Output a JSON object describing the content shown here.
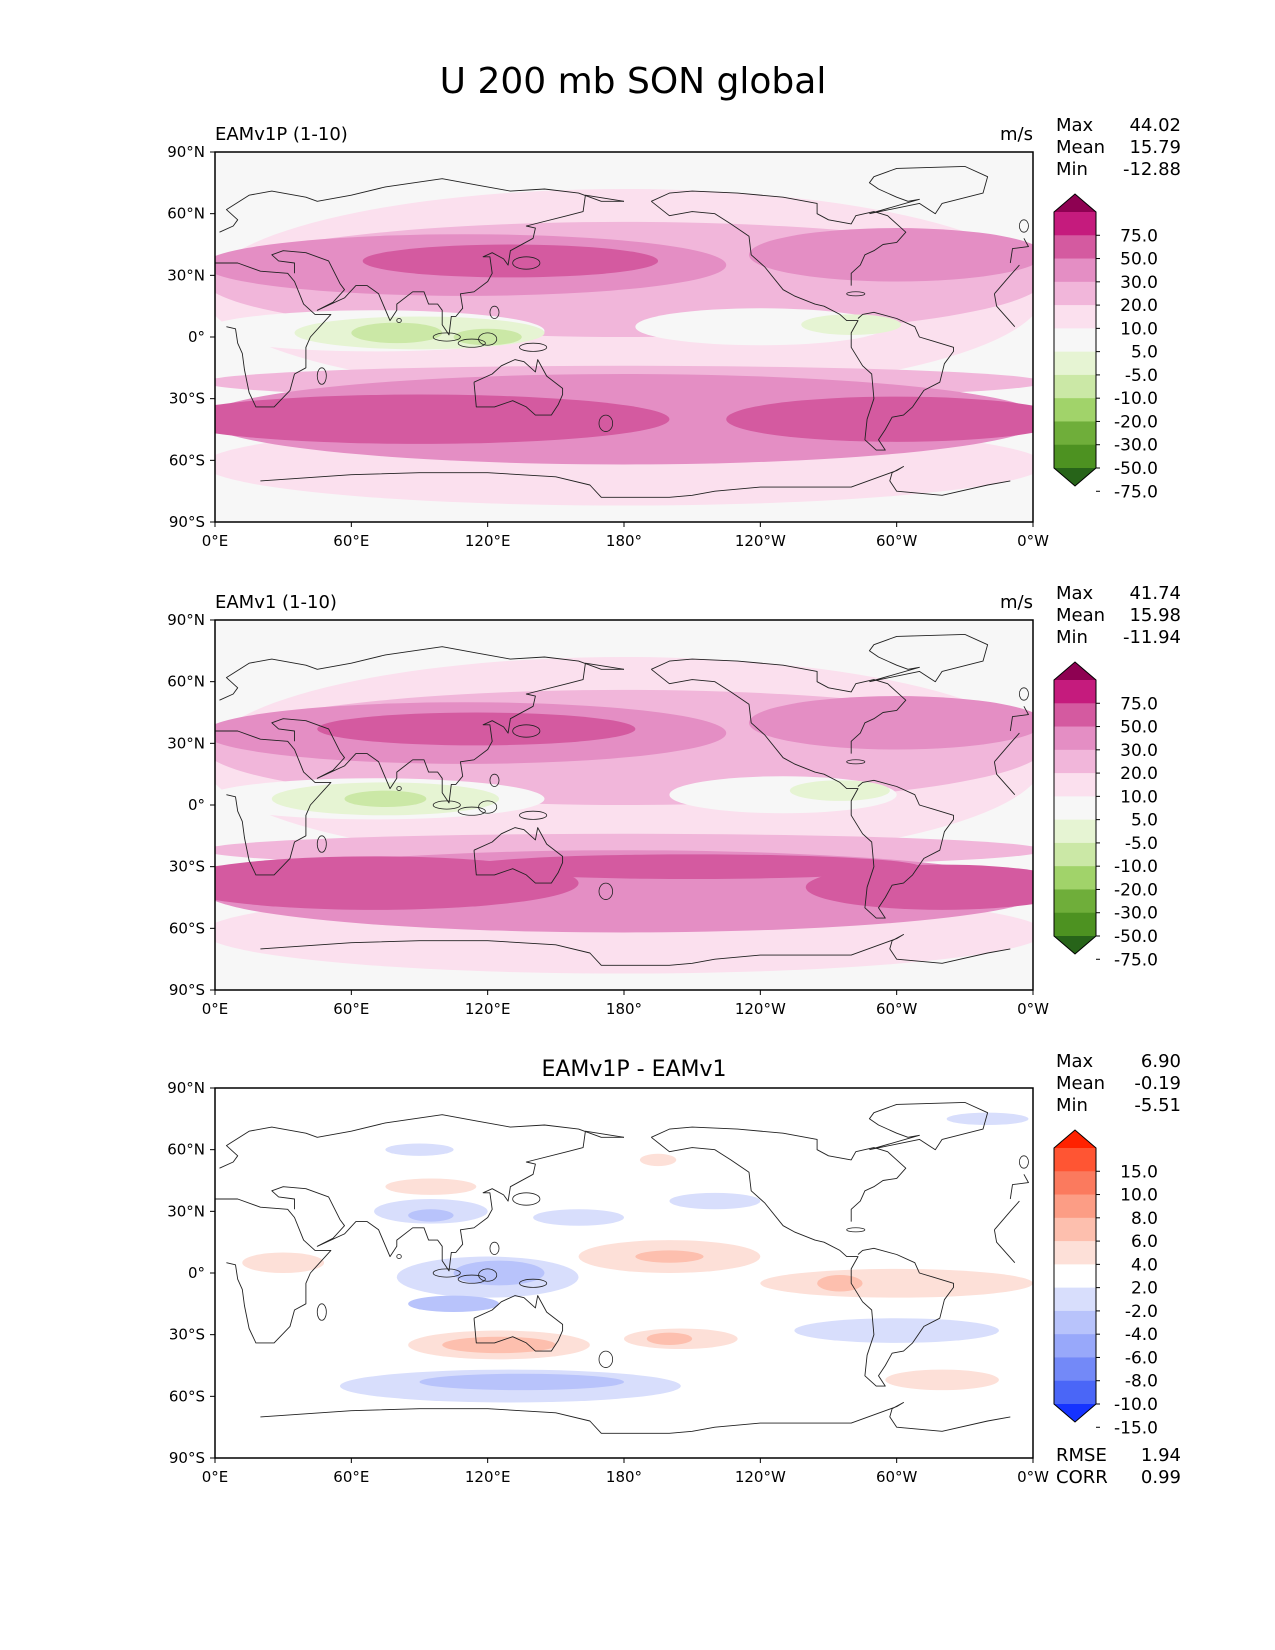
{
  "title": "U 200 mb SON global",
  "x_ticks": [
    "0°E",
    "60°E",
    "120°E",
    "180°",
    "120°W",
    "60°W",
    "0°W"
  ],
  "y_ticks": [
    "90°N",
    "60°N",
    "30°N",
    "0°",
    "30°S",
    "60°S",
    "90°S"
  ],
  "panels": [
    {
      "subtitle_left": "EAMv1P (1-10)",
      "subtitle_center": "",
      "units": "m/s",
      "stats": [
        {
          "label": "Max",
          "value": "44.02"
        },
        {
          "label": "Mean",
          "value": "15.79"
        },
        {
          "label": "Min",
          "value": "-12.88"
        }
      ],
      "extra_stats": [],
      "colorbar": {
        "labels": [
          "75.0",
          "50.0",
          "30.0",
          "20.0",
          "10.0",
          "5.0",
          "-5.0",
          "-10.0",
          "-20.0",
          "-30.0",
          "-50.0",
          "-75.0"
        ],
        "colors": [
          "#8e0152",
          "#c51b7d",
          "#d45aa0",
          "#e48ec4",
          "#f1b6da",
          "#fbe0ee",
          "#f7f7f7",
          "#e6f4d3",
          "#cbe8a6",
          "#a1d36a",
          "#6fae3a",
          "#4d9221",
          "#276419"
        ]
      }
    },
    {
      "subtitle_left": "EAMv1 (1-10)",
      "subtitle_center": "",
      "units": "m/s",
      "stats": [
        {
          "label": "Max",
          "value": "41.74"
        },
        {
          "label": "Mean",
          "value": "15.98"
        },
        {
          "label": "Min",
          "value": "-11.94"
        }
      ],
      "extra_stats": [],
      "colorbar": {
        "labels": [
          "75.0",
          "50.0",
          "30.0",
          "20.0",
          "10.0",
          "5.0",
          "-5.0",
          "-10.0",
          "-20.0",
          "-30.0",
          "-50.0",
          "-75.0"
        ],
        "colors": [
          "#8e0152",
          "#c51b7d",
          "#d45aa0",
          "#e48ec4",
          "#f1b6da",
          "#fbe0ee",
          "#f7f7f7",
          "#e6f4d3",
          "#cbe8a6",
          "#a1d36a",
          "#6fae3a",
          "#4d9221",
          "#276419"
        ]
      }
    },
    {
      "subtitle_left": "",
      "subtitle_center": "EAMv1P - EAMv1",
      "units": "",
      "stats": [
        {
          "label": "Max",
          "value": "6.90"
        },
        {
          "label": "Mean",
          "value": "-0.19"
        },
        {
          "label": "Min",
          "value": "-5.51"
        }
      ],
      "extra_stats": [
        {
          "label": "RMSE",
          "value": "1.94"
        },
        {
          "label": "CORR",
          "value": "0.99"
        }
      ],
      "colorbar": {
        "labels": [
          "15.0",
          "10.0",
          "8.0",
          "6.0",
          "4.0",
          "2.0",
          "-2.0",
          "-4.0",
          "-6.0",
          "-8.0",
          "-10.0",
          "-15.0"
        ],
        "colors": [
          "#ff2200",
          "#ff5533",
          "#fb7a5e",
          "#fc9d85",
          "#fdbfae",
          "#fde0d8",
          "#ffffff",
          "#d8defc",
          "#b8c3fb",
          "#98a8fa",
          "#7389f8",
          "#4a66f7",
          "#1533ff"
        ]
      }
    }
  ],
  "map_layers": [
    {
      "fill": "#f7f7f7",
      "blobs": [
        {
          "fill": "#fbe0ee",
          "lon": 180,
          "lat": 22,
          "rx": 185,
          "ry": 50
        },
        {
          "fill": "#fbe0ee",
          "lon": 180,
          "lat": -62,
          "rx": 185,
          "ry": 20
        },
        {
          "fill": "#f1b6da",
          "lon": 180,
          "lat": 28,
          "rx": 185,
          "ry": 28
        },
        {
          "fill": "#f1b6da",
          "lon": 180,
          "lat": -22,
          "rx": 185,
          "ry": 8
        },
        {
          "fill": "#e48ec4",
          "lon": 110,
          "lat": 35,
          "rx": 115,
          "ry": 15
        },
        {
          "fill": "#e48ec4",
          "lon": 300,
          "lat": 40,
          "rx": 65,
          "ry": 13
        },
        {
          "fill": "#e48ec4",
          "lon": 180,
          "lat": -40,
          "rx": 185,
          "ry": 22
        },
        {
          "fill": "#d45aa0",
          "lon": 130,
          "lat": 37,
          "rx": 65,
          "ry": 8
        },
        {
          "fill": "#d45aa0",
          "lon": 90,
          "lat": -40,
          "rx": 110,
          "ry": 12
        },
        {
          "fill": "#d45aa0",
          "lon": 300,
          "lat": -40,
          "rx": 75,
          "ry": 11
        },
        {
          "fill": "#f7f7f7",
          "lon": 240,
          "lat": 5,
          "rx": 55,
          "ry": 9
        },
        {
          "fill": "#f7f7f7",
          "lon": 70,
          "lat": 3,
          "rx": 75,
          "ry": 10
        },
        {
          "fill": "#e6f4d3",
          "lon": 90,
          "lat": 2,
          "rx": 55,
          "ry": 8
        },
        {
          "fill": "#e6f4d3",
          "lon": 280,
          "lat": 6,
          "rx": 22,
          "ry": 5
        },
        {
          "fill": "#cbe8a6",
          "lon": 80,
          "lat": 2,
          "rx": 20,
          "ry": 5
        },
        {
          "fill": "#cbe8a6",
          "lon": 120,
          "lat": 0,
          "rx": 15,
          "ry": 4
        }
      ]
    },
    {
      "fill": "#f7f7f7",
      "blobs": [
        {
          "fill": "#fbe0ee",
          "lon": 180,
          "lat": 22,
          "rx": 185,
          "ry": 50
        },
        {
          "fill": "#fbe0ee",
          "lon": 180,
          "lat": -62,
          "rx": 185,
          "ry": 20
        },
        {
          "fill": "#f1b6da",
          "lon": 180,
          "lat": 28,
          "rx": 185,
          "ry": 28
        },
        {
          "fill": "#f1b6da",
          "lon": 180,
          "lat": -22,
          "rx": 185,
          "ry": 8
        },
        {
          "fill": "#e48ec4",
          "lon": 110,
          "lat": 35,
          "rx": 115,
          "ry": 15
        },
        {
          "fill": "#e48ec4",
          "lon": 300,
          "lat": 40,
          "rx": 65,
          "ry": 13
        },
        {
          "fill": "#e48ec4",
          "lon": 180,
          "lat": -42,
          "rx": 185,
          "ry": 20
        },
        {
          "fill": "#d45aa0",
          "lon": 115,
          "lat": 37,
          "rx": 70,
          "ry": 8
        },
        {
          "fill": "#d45aa0",
          "lon": 70,
          "lat": -38,
          "rx": 90,
          "ry": 13
        },
        {
          "fill": "#d45aa0",
          "lon": 210,
          "lat": -30,
          "rx": 100,
          "ry": 6
        },
        {
          "fill": "#d45aa0",
          "lon": 320,
          "lat": -40,
          "rx": 60,
          "ry": 11
        },
        {
          "fill": "#f7f7f7",
          "lon": 250,
          "lat": 5,
          "rx": 50,
          "ry": 9
        },
        {
          "fill": "#f7f7f7",
          "lon": 70,
          "lat": 3,
          "rx": 75,
          "ry": 10
        },
        {
          "fill": "#e6f4d3",
          "lon": 75,
          "lat": 3,
          "rx": 50,
          "ry": 8
        },
        {
          "fill": "#e6f4d3",
          "lon": 275,
          "lat": 7,
          "rx": 22,
          "ry": 5
        },
        {
          "fill": "#cbe8a6",
          "lon": 75,
          "lat": 3,
          "rx": 18,
          "ry": 4
        }
      ]
    },
    {
      "fill": "#ffffff",
      "blobs": [
        {
          "fill": "#d8defc",
          "lon": 95,
          "lat": 30,
          "rx": 25,
          "ry": 6
        },
        {
          "fill": "#b8c3fb",
          "lon": 95,
          "lat": 28,
          "rx": 10,
          "ry": 3
        },
        {
          "fill": "#d8defc",
          "lon": 120,
          "lat": -2,
          "rx": 40,
          "ry": 10
        },
        {
          "fill": "#b8c3fb",
          "lon": 125,
          "lat": 0,
          "rx": 20,
          "ry": 6
        },
        {
          "fill": "#b8c3fb",
          "lon": 105,
          "lat": -15,
          "rx": 20,
          "ry": 4
        },
        {
          "fill": "#d8defc",
          "lon": 130,
          "lat": -55,
          "rx": 75,
          "ry": 8
        },
        {
          "fill": "#b8c3fb",
          "lon": 135,
          "lat": -53,
          "rx": 45,
          "ry": 4
        },
        {
          "fill": "#d8defc",
          "lon": 300,
          "lat": -28,
          "rx": 45,
          "ry": 6
        },
        {
          "fill": "#d8defc",
          "lon": 90,
          "lat": 60,
          "rx": 15,
          "ry": 3
        },
        {
          "fill": "#d8defc",
          "lon": 160,
          "lat": 27,
          "rx": 20,
          "ry": 4
        },
        {
          "fill": "#d8defc",
          "lon": 220,
          "lat": 35,
          "rx": 20,
          "ry": 4
        },
        {
          "fill": "#d8defc",
          "lon": 340,
          "lat": 75,
          "rx": 18,
          "ry": 3
        },
        {
          "fill": "#fde0d8",
          "lon": 95,
          "lat": 42,
          "rx": 20,
          "ry": 4
        },
        {
          "fill": "#fde0d8",
          "lon": 200,
          "lat": 8,
          "rx": 40,
          "ry": 8
        },
        {
          "fill": "#fdbfae",
          "lon": 200,
          "lat": 8,
          "rx": 15,
          "ry": 3
        },
        {
          "fill": "#fde0d8",
          "lon": 125,
          "lat": -35,
          "rx": 40,
          "ry": 7
        },
        {
          "fill": "#fdbfae",
          "lon": 125,
          "lat": -35,
          "rx": 25,
          "ry": 4
        },
        {
          "fill": "#fde0d8",
          "lon": 205,
          "lat": -32,
          "rx": 25,
          "ry": 5
        },
        {
          "fill": "#fdbfae",
          "lon": 200,
          "lat": -32,
          "rx": 10,
          "ry": 3
        },
        {
          "fill": "#fde0d8",
          "lon": 300,
          "lat": -5,
          "rx": 60,
          "ry": 7
        },
        {
          "fill": "#fdbfae",
          "lon": 275,
          "lat": -5,
          "rx": 10,
          "ry": 4
        },
        {
          "fill": "#fde0d8",
          "lon": 30,
          "lat": 5,
          "rx": 18,
          "ry": 5
        },
        {
          "fill": "#fde0d8",
          "lon": 320,
          "lat": -52,
          "rx": 25,
          "ry": 5
        },
        {
          "fill": "#fde0d8",
          "lon": 195,
          "lat": 55,
          "rx": 8,
          "ry": 3
        }
      ]
    }
  ]
}
